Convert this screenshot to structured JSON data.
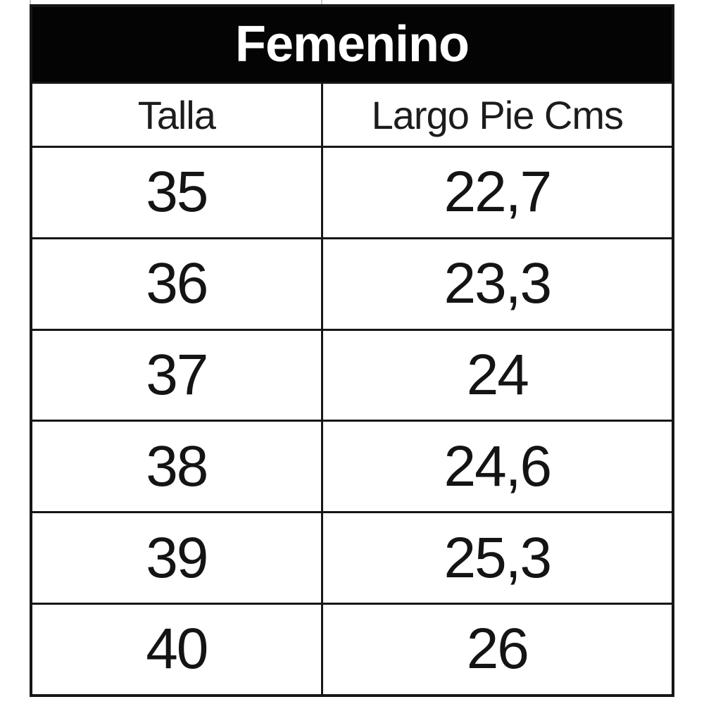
{
  "chart_data": {
    "type": "table",
    "title": "Femenino",
    "columns": [
      "Talla",
      "Largo Pie Cms"
    ],
    "rows": [
      [
        "35",
        "22,7"
      ],
      [
        "36",
        "23,3"
      ],
      [
        "37",
        "24"
      ],
      [
        "38",
        "24,6"
      ],
      [
        "39",
        "25,3"
      ],
      [
        "40",
        "26"
      ]
    ]
  },
  "colors": {
    "title_bg": "#040404",
    "title_text": "#ffffff",
    "border": "#161616",
    "cell_text": "#141414",
    "page_bg": "#ffffff"
  }
}
